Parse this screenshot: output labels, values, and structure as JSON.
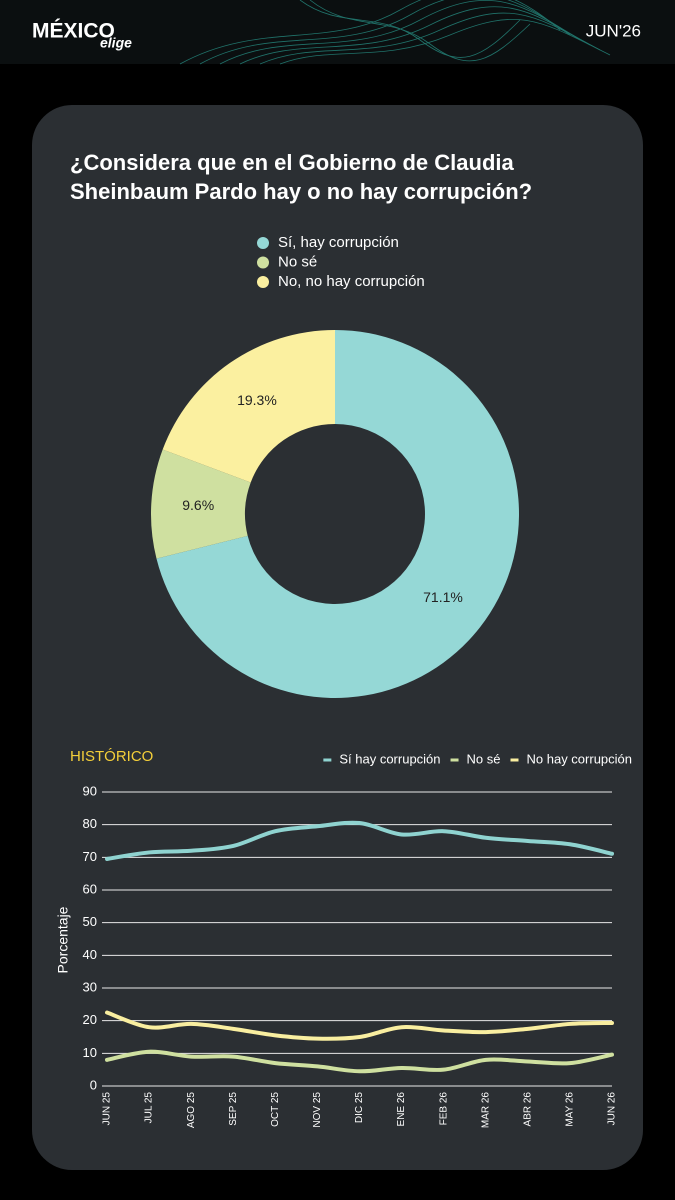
{
  "header": {
    "brand": "MÉXICO",
    "tagline": "elige",
    "date": "JUN'26"
  },
  "chart_data": [
    {
      "type": "pie",
      "title": "¿Considera que en el Gobierno de Claudia Sheinbaum Pardo hay o no hay corrupción?",
      "categories": [
        "Sí, hay corrupción",
        "No sé",
        "No, no hay corrupción"
      ],
      "values": [
        71.1,
        9.6,
        19.3
      ],
      "value_labels": [
        "71.1%",
        "9.6%",
        "19.3%"
      ],
      "colors": [
        "#95d8d6",
        "#cfe0a0",
        "#fbf0a0"
      ],
      "legend": "top"
    },
    {
      "type": "line",
      "title": "HISTÓRICO",
      "y_label": "Porcentaje",
      "categories": [
        "JUN 25",
        "JUL 25",
        "AGO 25",
        "SEP 25",
        "OCT 25",
        "NOV 25",
        "DIC 25",
        "ENE 26",
        "FEB 26",
        "MAR 26",
        "ABR 26",
        "MAY 26",
        "JUN 26"
      ],
      "series": [
        {
          "name": "Sí hay corrupción",
          "color": "#8fd3d0",
          "values": [
            69.5,
            71.5,
            72,
            73.5,
            78,
            79.5,
            80.5,
            77,
            78,
            76,
            75,
            74,
            71.1
          ]
        },
        {
          "name": "No sé",
          "color": "#cfe0a0",
          "values": [
            8,
            10.5,
            9,
            9,
            7,
            6,
            4.5,
            5.5,
            5,
            8,
            7.5,
            7,
            9.6
          ]
        },
        {
          "name": "No hay corrupción",
          "color": "#f9eea0",
          "values": [
            22.5,
            18,
            19,
            17.5,
            15.5,
            14.5,
            15,
            18,
            17,
            16.5,
            17.5,
            19,
            19.3
          ]
        }
      ],
      "ylim": [
        0,
        90
      ],
      "yticks": [
        0,
        10,
        20,
        30,
        40,
        50,
        60,
        70,
        80,
        90
      ],
      "grid": true,
      "legend": "top-right"
    }
  ]
}
